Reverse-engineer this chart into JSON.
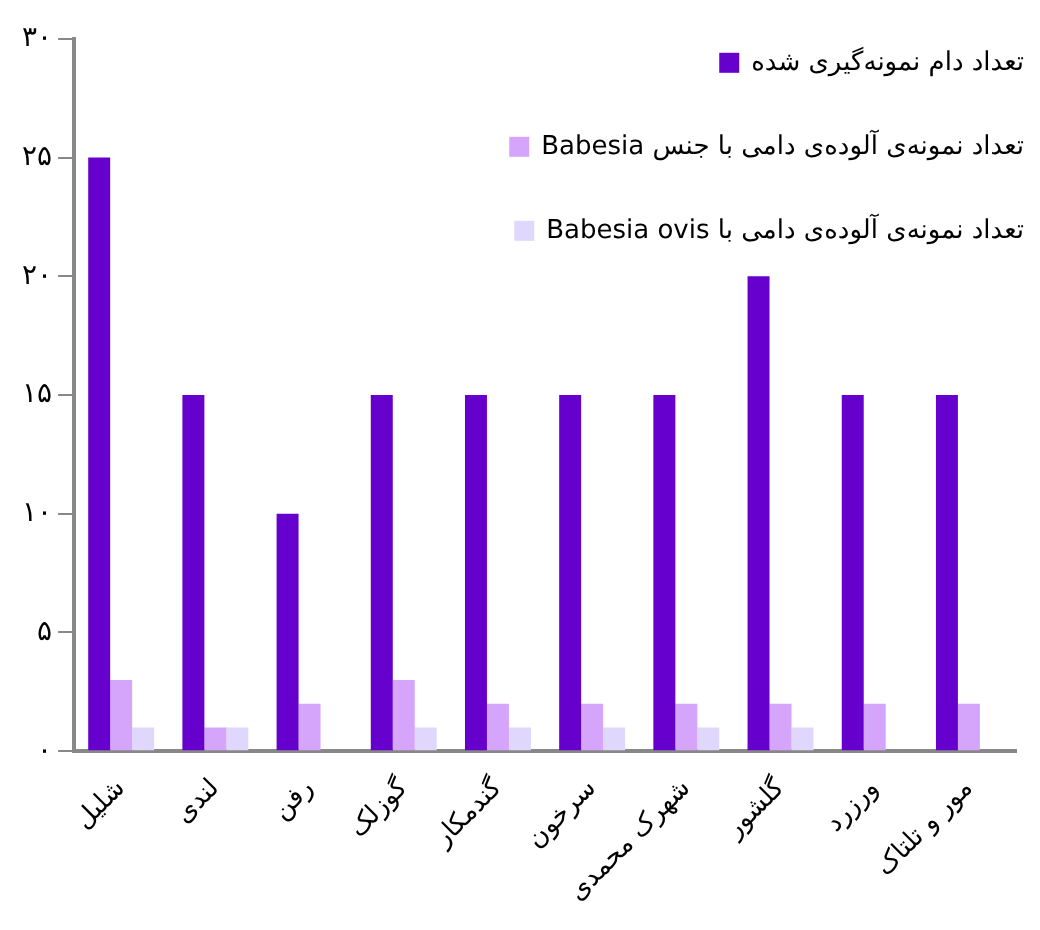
{
  "chart_data": {
    "type": "bar",
    "categories": [
      "شلیل",
      "لندی",
      "رفن",
      "گوزلک",
      "گندمکار",
      "سرخون",
      "شهرک محمدی",
      "گلشور",
      "ورزرد",
      "مور و تلتاک"
    ],
    "series": [
      {
        "name": "تعداد دام نمونه‌گیری شده",
        "color": "#6600cc",
        "values": [
          25,
          15,
          10,
          15,
          15,
          15,
          15,
          20,
          15,
          15
        ]
      },
      {
        "name": "تعداد نمونه‌ی آلوده‌ی دامی با جنس Babesia",
        "color": "#d4a5fa",
        "values": [
          3,
          1,
          2,
          3,
          2,
          2,
          2,
          2,
          2,
          2
        ]
      },
      {
        "name": "تعداد نمونه‌ی آلوده‌ی دامی با Babesia ovis",
        "color": "#e0d8fc",
        "values": [
          1,
          1,
          0,
          1,
          1,
          1,
          1,
          1,
          0,
          0
        ]
      }
    ],
    "ylim": [
      0,
      30
    ],
    "yticks": [
      {
        "value": 0,
        "label": "۰"
      },
      {
        "value": 5,
        "label": "۵"
      },
      {
        "value": 10,
        "label": "۱۰"
      },
      {
        "value": 15,
        "label": "۱۵"
      },
      {
        "value": 20,
        "label": "۲۰"
      },
      {
        "value": 25,
        "label": "۲۵"
      },
      {
        "value": 30,
        "label": "۳۰"
      }
    ],
    "grid": false,
    "legend": "top right"
  }
}
